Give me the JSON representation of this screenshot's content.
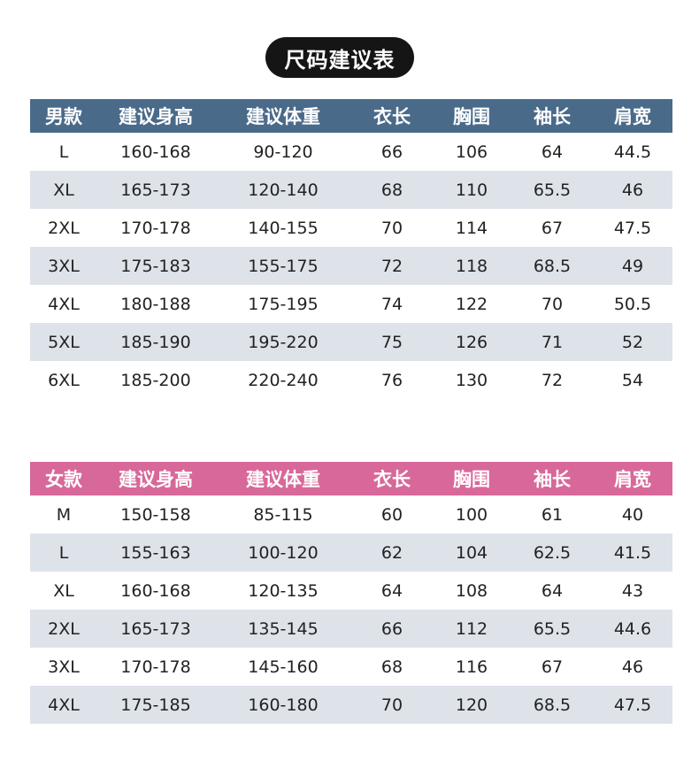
{
  "title": "尺码建议表",
  "men": {
    "headers": [
      "男款",
      "建议身高",
      "建议体重",
      "衣长",
      "胸围",
      "袖长",
      "肩宽"
    ],
    "rows": [
      [
        "L",
        "160-168",
        "90-120",
        "66",
        "106",
        "64",
        "44.5"
      ],
      [
        "XL",
        "165-173",
        "120-140",
        "68",
        "110",
        "65.5",
        "46"
      ],
      [
        "2XL",
        "170-178",
        "140-155",
        "70",
        "114",
        "67",
        "47.5"
      ],
      [
        "3XL",
        "175-183",
        "155-175",
        "72",
        "118",
        "68.5",
        "49"
      ],
      [
        "4XL",
        "180-188",
        "175-195",
        "74",
        "122",
        "70",
        "50.5"
      ],
      [
        "5XL",
        "185-190",
        "195-220",
        "75",
        "126",
        "71",
        "52"
      ],
      [
        "6XL",
        "185-200",
        "220-240",
        "76",
        "130",
        "72",
        "54"
      ]
    ]
  },
  "women": {
    "headers": [
      "女款",
      "建议身高",
      "建议体重",
      "衣长",
      "胸围",
      "袖长",
      "肩宽"
    ],
    "rows": [
      [
        "M",
        "150-158",
        "85-115",
        "60",
        "100",
        "61",
        "40"
      ],
      [
        "L",
        "155-163",
        "100-120",
        "62",
        "104",
        "62.5",
        "41.5"
      ],
      [
        "XL",
        "160-168",
        "120-135",
        "64",
        "108",
        "64",
        "43"
      ],
      [
        "2XL",
        "165-173",
        "135-145",
        "66",
        "112",
        "65.5",
        "44.6"
      ],
      [
        "3XL",
        "170-178",
        "145-160",
        "68",
        "116",
        "67",
        "46"
      ],
      [
        "4XL",
        "175-185",
        "160-180",
        "70",
        "120",
        "68.5",
        "47.5"
      ]
    ]
  },
  "colors": {
    "men_header": "#4a6a8a",
    "women_header": "#d8689a",
    "stripe": "#dee3ea",
    "title_bg": "#151515"
  }
}
